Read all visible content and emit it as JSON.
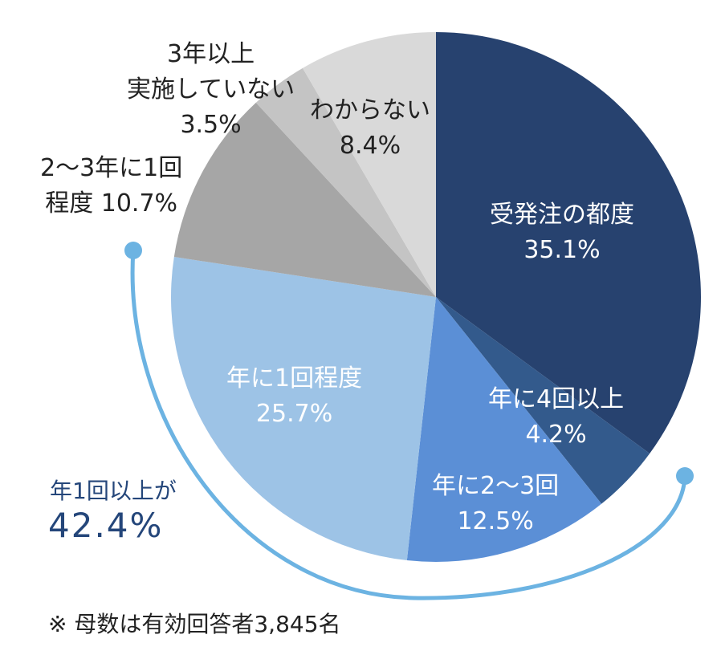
{
  "chart_data": {
    "type": "pie",
    "slices": [
      {
        "name": "受発注の都度",
        "value": 35.1,
        "value_label": "35.1%",
        "color": "#27426f"
      },
      {
        "name": "年に4回以上",
        "value": 4.2,
        "value_label": "4.2%",
        "color": "#335a8c"
      },
      {
        "name": "年に2～3回",
        "value": 12.5,
        "value_label": "12.5%",
        "color": "#5b8fd6"
      },
      {
        "name": "年に1回程度",
        "value": 25.7,
        "value_label": "25.7%",
        "color": "#9dc3e6"
      },
      {
        "name": "2～3年に1回程度",
        "value": 10.7,
        "value_label": "10.7%",
        "color": "#a6a6a6"
      },
      {
        "name": "3年以上実施していない",
        "value": 3.5,
        "value_label": "3.5%",
        "color": "#c4c4c4"
      },
      {
        "name": "わからない",
        "value": 8.4,
        "value_label": "8.4%",
        "color": "#d9d9d9"
      }
    ],
    "label_texts": {
      "s0": [
        "受発注の都度",
        "35.1%"
      ],
      "s1": [
        "年に4回以上",
        "4.2%"
      ],
      "s2": [
        "年に2～3回",
        "12.5%"
      ],
      "s3": [
        "年に1回程度",
        "25.7%"
      ],
      "s4": [
        "2～3年に1回",
        "程度 10.7%"
      ],
      "s5": [
        "3年以上",
        "実施していない",
        "3.5%"
      ],
      "s6": [
        "わからない",
        "8.4%"
      ]
    },
    "summary": {
      "text": "年1回以上が",
      "value": "42.4%",
      "color": "#6cb3e2"
    },
    "note": "※ 母数は有効回答者3,845名"
  }
}
